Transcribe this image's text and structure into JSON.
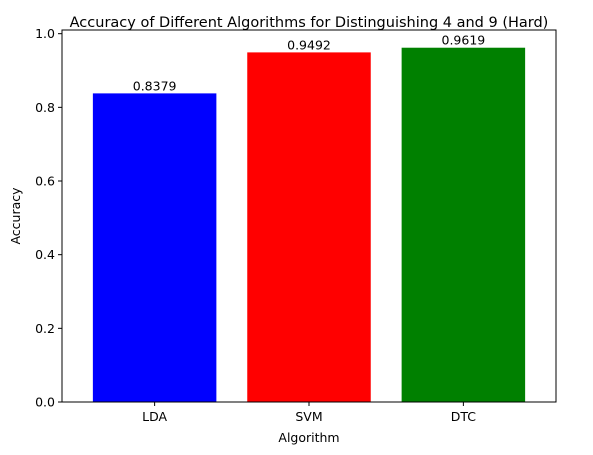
{
  "chart_data": {
    "type": "bar",
    "title": "Accuracy of Different Algorithms for Distinguishing 4 and 9 (Hard)",
    "xlabel": "Algorithm",
    "ylabel": "Accuracy",
    "categories": [
      "LDA",
      "SVM",
      "DTC"
    ],
    "values": [
      0.8379,
      0.9492,
      0.9619
    ],
    "value_labels": [
      "0.8379",
      "0.9492",
      "0.9619"
    ],
    "colors": [
      "#0000ff",
      "#ff0000",
      "#008000"
    ],
    "ylim": [
      0,
      1.01
    ],
    "yticks": [
      0.0,
      0.2,
      0.4,
      0.6,
      0.8,
      1.0
    ],
    "ytick_labels": [
      "0.0",
      "0.2",
      "0.4",
      "0.6",
      "0.8",
      "1.0"
    ],
    "grid": false,
    "legend": "none"
  }
}
